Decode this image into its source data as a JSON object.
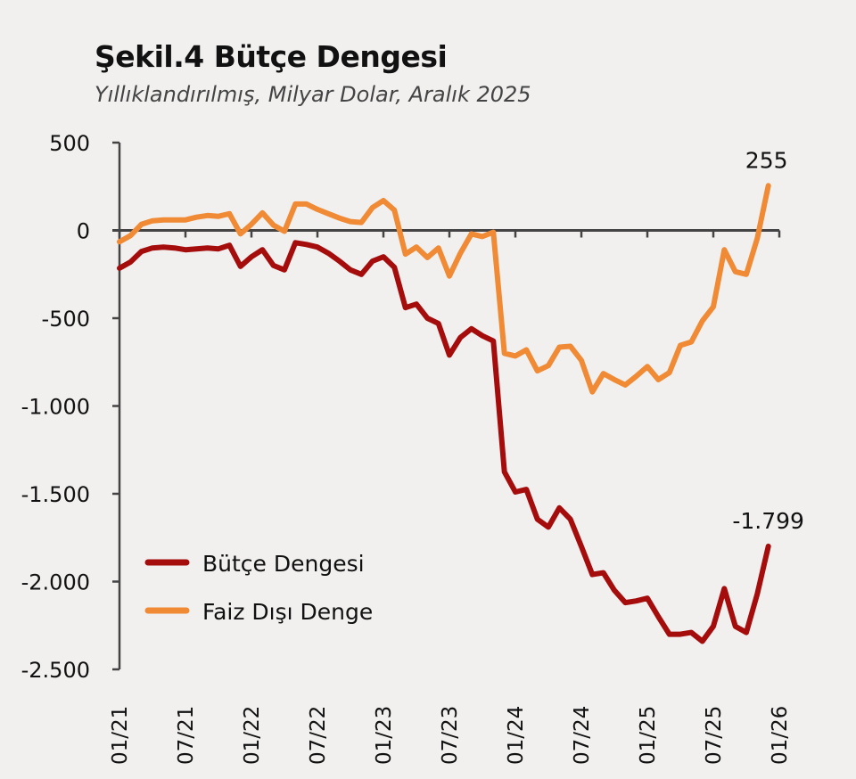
{
  "header": {
    "title": "Şekil.4 Bütçe Dengesi",
    "subtitle": "Yıllıklandırılmış, Milyar Dolar, Aralık 2025"
  },
  "colors": {
    "butce": "#a50d0d",
    "faiz": "#f08a35",
    "axis": "#444444"
  },
  "chart_data": {
    "type": "line",
    "title": "Şekil.4 Bütçe Dengesi",
    "subtitle": "Yıllıklandırılmış, Milyar Dolar, Aralık 2025",
    "xlabel": "",
    "ylabel": "",
    "ylim": [
      -2500,
      500
    ],
    "yticks": [
      500,
      0,
      -500,
      -1000,
      -1500,
      -2000,
      -2500
    ],
    "ytick_labels": [
      "500",
      "0",
      "-500",
      "-1.000",
      "-1.500",
      "-2.000",
      "-2.500"
    ],
    "xtick_labels": [
      "01/21",
      "07/21",
      "01/22",
      "07/22",
      "01/23",
      "07/23",
      "01/24",
      "07/24",
      "01/25",
      "07/25",
      "01/26"
    ],
    "x_start": "01/21",
    "x_frequency": "monthly",
    "x_span_months": 60,
    "legend_position": "bottom-left",
    "grid": false,
    "series": [
      {
        "name": "Bütçe Dengesi",
        "color": "#a50d0d",
        "values": [
          -215,
          -180,
          -120,
          -100,
          -95,
          -100,
          -110,
          -105,
          -100,
          -105,
          -85,
          -205,
          -150,
          -110,
          -200,
          -225,
          -70,
          -80,
          -95,
          -130,
          -175,
          -225,
          -250,
          -175,
          -150,
          -210,
          -440,
          -420,
          -500,
          -530,
          -710,
          -610,
          -560,
          -600,
          -630,
          -1375,
          -1490,
          -1475,
          -1645,
          -1690,
          -1580,
          -1645,
          -1800,
          -1960,
          -1950,
          -2050,
          -2120,
          -2110,
          -2095,
          -2200,
          -2300,
          -2300,
          -2290,
          -2340,
          -2255,
          -2040,
          -2255,
          -2290,
          -2070,
          -1799
        ],
        "end_label": "-1.799"
      },
      {
        "name": "Faiz Dışı Denge",
        "color": "#f08a35",
        "values": [
          -65,
          -30,
          35,
          55,
          60,
          60,
          60,
          75,
          85,
          80,
          95,
          -20,
          35,
          100,
          30,
          -5,
          150,
          150,
          120,
          95,
          70,
          50,
          45,
          130,
          170,
          115,
          -135,
          -95,
          -155,
          -100,
          -260,
          -130,
          -20,
          -35,
          -10,
          -700,
          -715,
          -680,
          -800,
          -770,
          -665,
          -660,
          -740,
          -920,
          -815,
          -850,
          -880,
          -830,
          -775,
          -850,
          -810,
          -655,
          -635,
          -515,
          -435,
          -110,
          -235,
          -250,
          -45,
          255
        ],
        "end_label": "255"
      }
    ]
  }
}
